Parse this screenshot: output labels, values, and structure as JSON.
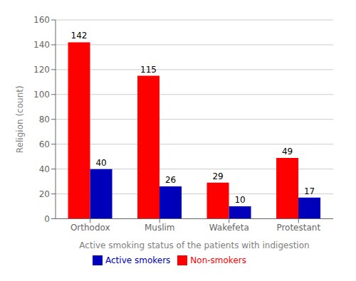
{
  "chart_data": {
    "type": "bar",
    "categories": [
      "Orthodox",
      "Muslim",
      "Wakefeta",
      "Protestant"
    ],
    "series": [
      {
        "name": "Non-smokers",
        "color": "#FF0000",
        "values": [
          142,
          115,
          29,
          49
        ]
      },
      {
        "name": "Active smokers",
        "color": "#0000BB",
        "values": [
          40,
          26,
          10,
          17
        ]
      }
    ],
    "xlabel": "Active smoking status of the patients with indigestion",
    "ylabel": "Religion (count)",
    "ylim": [
      0,
      160
    ],
    "yticks": [
      0,
      20,
      40,
      60,
      80,
      100,
      120,
      140,
      160
    ],
    "grid": true,
    "legend": "bottom",
    "data_labels": true
  }
}
